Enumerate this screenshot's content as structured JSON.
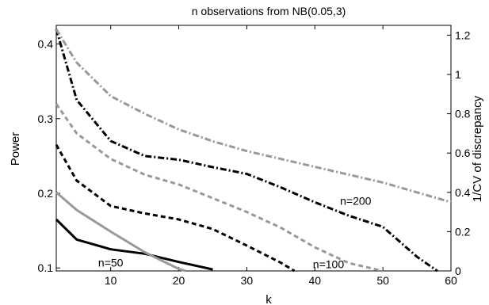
{
  "chart_data": {
    "type": "line",
    "title": "n observations from NB(0.05,3)",
    "xlabel": "k",
    "ylabel_left": "Power",
    "ylabel_right": "1/CV of discrepancy",
    "xlim": [
      2,
      60
    ],
    "ylim_left": [
      0.096,
      0.425
    ],
    "ylim_right": [
      0,
      1.25
    ],
    "xticks": [
      "10",
      "20",
      "30",
      "40",
      "50",
      "60"
    ],
    "yticks_left": [
      "0.1",
      "0.2",
      "0.3",
      "0.4"
    ],
    "yticks_right": [
      "0",
      "0.2",
      "0.4",
      "0.6",
      "0.8",
      "1",
      "1.2"
    ],
    "grid": false,
    "colors": {
      "black": "#000000",
      "gray": "#999999"
    },
    "series": [
      {
        "axis": "left",
        "color": "black",
        "dash": "solid",
        "x": [
          2,
          5,
          10,
          15,
          20,
          25
        ],
        "y": [
          0.165,
          0.138,
          0.125,
          0.119,
          0.108,
          0.098
        ]
      },
      {
        "axis": "right",
        "color": "gray",
        "dash": "solid",
        "x": [
          2,
          5,
          10,
          15,
          20,
          21
        ],
        "y": [
          0.4,
          0.31,
          0.2,
          0.095,
          0.01,
          0
        ]
      },
      {
        "axis": "left",
        "color": "black",
        "dash": "dashed",
        "x": [
          2,
          5,
          10,
          15,
          20,
          25,
          30,
          35,
          37
        ],
        "y": [
          0.265,
          0.217,
          0.183,
          0.173,
          0.165,
          0.152,
          0.13,
          0.107,
          0.096
        ]
      },
      {
        "axis": "right",
        "color": "gray",
        "dash": "dashed",
        "x": [
          2,
          5,
          10,
          15,
          20,
          25,
          30,
          35,
          40,
          45,
          50
        ],
        "y": [
          0.85,
          0.7,
          0.57,
          0.49,
          0.44,
          0.37,
          0.3,
          0.22,
          0.12,
          0.04,
          0
        ]
      },
      {
        "axis": "left",
        "color": "black",
        "dash": "dashdot",
        "x": [
          2,
          5,
          10,
          15,
          20,
          25,
          30,
          35,
          40,
          45,
          50,
          55,
          58
        ],
        "y": [
          0.42,
          0.325,
          0.27,
          0.25,
          0.245,
          0.235,
          0.226,
          0.208,
          0.188,
          0.17,
          0.155,
          0.115,
          0.096
        ]
      },
      {
        "axis": "right",
        "color": "gray",
        "dash": "dashdot",
        "x": [
          2,
          5,
          10,
          15,
          20,
          25,
          30,
          35,
          40,
          45,
          50,
          55,
          60
        ],
        "y": [
          1.23,
          1.06,
          0.89,
          0.8,
          0.72,
          0.66,
          0.61,
          0.57,
          0.53,
          0.49,
          0.45,
          0.4,
          0.35
        ]
      }
    ],
    "annotations": [
      {
        "text": "n=50",
        "x": 10,
        "y": 0.107
      },
      {
        "text": "n=100",
        "x": 42,
        "y": 0.105
      },
      {
        "text": "n=200",
        "x": 46,
        "y": 0.19
      }
    ]
  }
}
